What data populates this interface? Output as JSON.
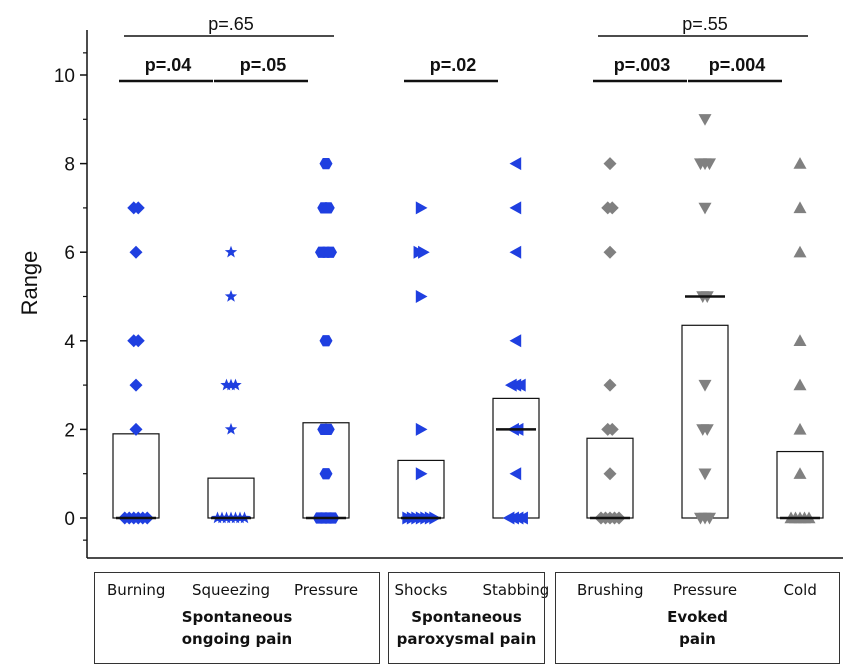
{
  "chart_data": {
    "type": "bar",
    "ylabel": "Range",
    "ylim": [
      -0.9,
      11
    ],
    "yticks": [
      0,
      2,
      4,
      6,
      8,
      10
    ],
    "ytick_labels": [
      "0",
      "2",
      "4",
      "6",
      "8",
      "10"
    ],
    "groups": [
      {
        "name_line1": "Spontaneous",
        "name_line2": "ongoing pain",
        "categories": [
          "Burning",
          "Squeezing",
          "Pressure"
        ]
      },
      {
        "name_line1": "Spontaneous",
        "name_line2": "paroxysmal pain",
        "categories": [
          "Shocks",
          "Stabbing"
        ]
      },
      {
        "name_line1": "Evoked",
        "name_line2": "pain",
        "categories": [
          "Brushing",
          "Pressure",
          "Cold"
        ]
      }
    ],
    "categories": [
      "Burning",
      "Squeezing",
      "Pressure",
      "Shocks",
      "Stabbing",
      "Brushing",
      "Pressure",
      "Cold"
    ],
    "series": [
      {
        "category": "Burning",
        "mean": 1.9,
        "median": 0,
        "marker": "diamond",
        "color": "#1f3fe0",
        "points": [
          7,
          7,
          6,
          4,
          4,
          3,
          2,
          0,
          0,
          0,
          0,
          0,
          0
        ]
      },
      {
        "category": "Squeezing",
        "mean": 0.9,
        "median": 0,
        "marker": "star",
        "color": "#1f3fe0",
        "points": [
          6,
          5,
          3,
          3,
          3,
          2,
          0,
          0,
          0,
          0,
          0,
          0,
          0
        ]
      },
      {
        "category": "Pressure",
        "mean": 2.15,
        "median": 0,
        "marker": "hexagon",
        "color": "#1f3fe0",
        "points": [
          8,
          7,
          7,
          6,
          6,
          6,
          4,
          2,
          2,
          1,
          0,
          0,
          0,
          0
        ]
      },
      {
        "category": "Shocks",
        "mean": 1.3,
        "median": 0,
        "marker": "triangle-right",
        "color": "#1f3fe0",
        "points": [
          7,
          6,
          6,
          5,
          2,
          1,
          0,
          0,
          0,
          0,
          0,
          0,
          0
        ]
      },
      {
        "category": "Stabbing",
        "mean": 2.7,
        "median": 2,
        "marker": "triangle-left",
        "color": "#1f3fe0",
        "points": [
          8,
          7,
          6,
          4,
          3,
          3,
          3,
          2,
          2,
          1,
          0,
          0,
          0,
          0
        ]
      },
      {
        "category": "Brushing",
        "mean": 1.8,
        "median": 0,
        "marker": "diamond",
        "color": "#808080",
        "points": [
          8,
          7,
          7,
          6,
          3,
          2,
          2,
          1,
          0,
          0,
          0,
          0,
          0
        ]
      },
      {
        "category": "Pressure",
        "mean": 4.35,
        "median": 5,
        "marker": "triangle-down",
        "color": "#808080",
        "points": [
          9,
          8,
          8,
          8,
          7,
          5,
          5,
          3,
          2,
          2,
          1,
          0,
          0,
          0
        ]
      },
      {
        "category": "Cold",
        "mean": 1.5,
        "median": 0,
        "marker": "triangle-up",
        "color": "#808080",
        "points": [
          8,
          7,
          6,
          4,
          3,
          2,
          1,
          0,
          0,
          0,
          0,
          0
        ]
      }
    ],
    "comparisons": [
      {
        "label": "p=.65",
        "bold": false,
        "from": 0,
        "to": 2
      },
      {
        "label": "p=.04",
        "bold": true,
        "from": 0,
        "to": 1
      },
      {
        "label": "p=.05",
        "bold": true,
        "from": 1,
        "to": 2
      },
      {
        "label": "p=.02",
        "bold": true,
        "from": 3,
        "to": 4
      },
      {
        "label": "p=.55",
        "bold": false,
        "from": 5,
        "to": 7
      },
      {
        "label": "p=.003",
        "bold": true,
        "from": 5,
        "to": 6
      },
      {
        "label": "p=.004",
        "bold": true,
        "from": 6,
        "to": 7
      }
    ]
  }
}
